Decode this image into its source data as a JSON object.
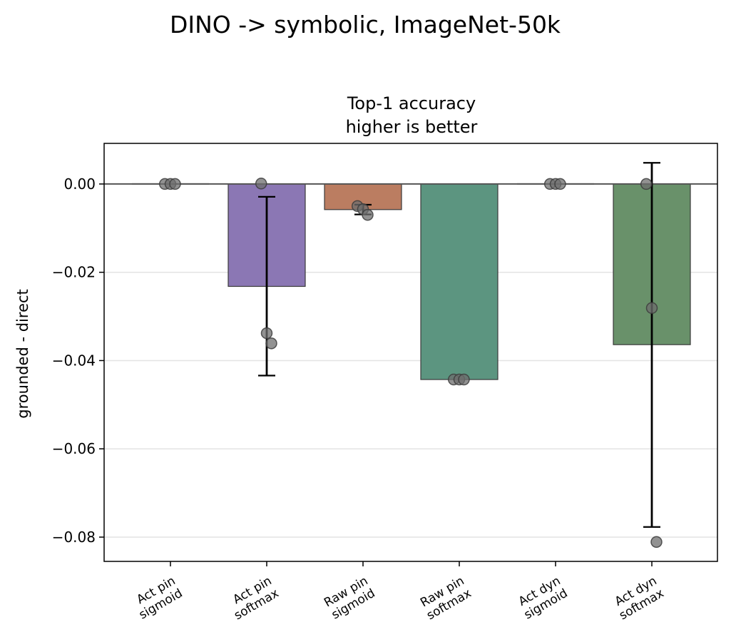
{
  "chart_data": {
    "type": "bar",
    "suptitle": "DINO -> symbolic, ImageNet-50k",
    "title": "Top-1 accuracy",
    "subtitle": "higher is better",
    "xlabel": "",
    "ylabel": "grounded - direct",
    "ylim": [
      -0.0855,
      0.0092
    ],
    "yticks": [
      0.0,
      -0.02,
      -0.04,
      -0.06,
      -0.08
    ],
    "ytick_labels": [
      "0.00",
      "−0.02",
      "−0.04",
      "−0.06",
      "−0.08"
    ],
    "grid": "horizontal",
    "categories": [
      {
        "line1": "Act pin",
        "line2": "sigmoid"
      },
      {
        "line1": "Act pin",
        "line2": "softmax"
      },
      {
        "line1": "Raw pin",
        "line2": "sigmoid"
      },
      {
        "line1": "Raw pin",
        "line2": "softmax"
      },
      {
        "line1": "Act dyn",
        "line2": "sigmoid"
      },
      {
        "line1": "Act dyn",
        "line2": "softmax"
      }
    ],
    "values": [
      0.0,
      -0.0232,
      -0.0058,
      -0.0443,
      0.0,
      -0.0364
    ],
    "errors": [
      [
        0.0,
        0.0
      ],
      [
        -0.0434,
        -0.0029
      ],
      [
        -0.0069,
        -0.0047
      ],
      [
        -0.0443,
        -0.0443
      ],
      [
        0.0,
        0.0
      ],
      [
        -0.0777,
        0.0048
      ]
    ],
    "points": [
      [
        0.0,
        0.0,
        0.0
      ],
      [
        0.0001,
        -0.0338,
        -0.0361
      ],
      [
        -0.005,
        -0.0057,
        -0.007
      ],
      [
        -0.0443,
        -0.0443,
        -0.0443
      ],
      [
        0.0,
        0.0,
        0.0
      ],
      [
        0.0,
        -0.0281,
        -0.0811
      ]
    ],
    "colors": [
      "#8c8c8c",
      "#8b77b4",
      "#bb7d61",
      "#5c9580",
      "#8c8c8c",
      "#69916a"
    ]
  }
}
